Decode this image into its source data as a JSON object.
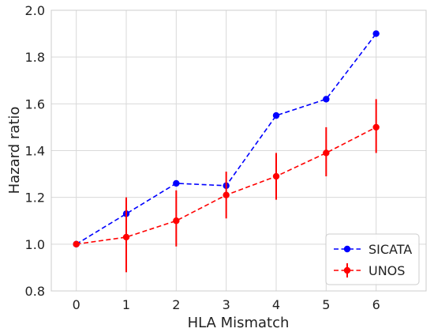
{
  "chart_data": {
    "type": "line",
    "xlabel": "HLA Mismatch",
    "ylabel": "Hazard ratio",
    "x": [
      0,
      1,
      2,
      3,
      4,
      5,
      6
    ],
    "xlim": [
      -0.5,
      7.0
    ],
    "ylim": [
      0.8,
      2.0
    ],
    "x_ticks": [
      "0",
      "1",
      "2",
      "3",
      "4",
      "5",
      "6"
    ],
    "y_ticks": [
      "0.8",
      "1.0",
      "1.2",
      "1.4",
      "1.6",
      "1.8",
      "2.0"
    ],
    "grid": true,
    "legend_position": "bottom-right",
    "series": [
      {
        "name": "SICATA",
        "color": "#0000ff",
        "line_style": "dashed",
        "marker": "circle",
        "values": [
          1.0,
          1.13,
          1.26,
          1.25,
          1.55,
          1.62,
          1.9
        ]
      },
      {
        "name": "UNOS",
        "color": "#ff0000",
        "line_style": "dashed",
        "marker": "circle",
        "values": [
          1.0,
          1.03,
          1.1,
          1.21,
          1.29,
          1.39,
          1.5
        ],
        "error_low": [
          1.0,
          0.88,
          0.99,
          1.11,
          1.19,
          1.29,
          1.39
        ],
        "error_high": [
          1.0,
          1.2,
          1.23,
          1.31,
          1.39,
          1.5,
          1.62
        ]
      }
    ]
  }
}
